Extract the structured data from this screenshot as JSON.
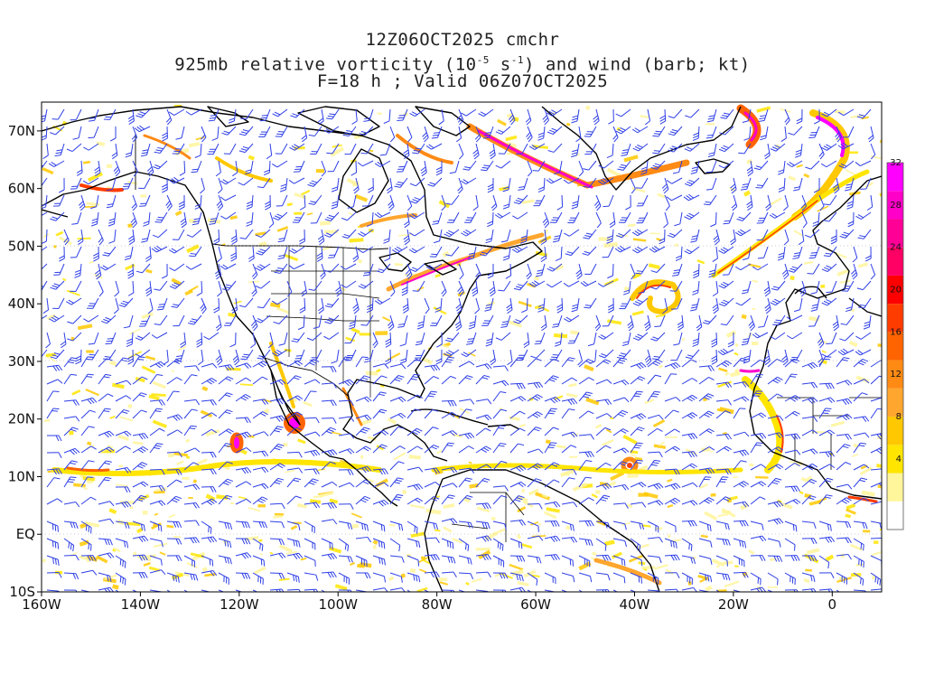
{
  "title": {
    "line1": "12Z06OCT2025 cmchr",
    "line2_parts": [
      "925mb relative vorticity (10",
      "-5",
      " s",
      "-1",
      ") and wind (barb; kt)"
    ],
    "line3": "F=18 h ; Valid 06Z07OCT2025"
  },
  "axes": {
    "lat_labels": [
      "70N",
      "60N",
      "50N",
      "40N",
      "30N",
      "20N",
      "10N",
      "EQ",
      "10S"
    ],
    "lat_values": [
      70,
      60,
      50,
      40,
      30,
      20,
      10,
      0,
      -10
    ],
    "lon_labels": [
      "160W",
      "140W",
      "120W",
      "100W",
      "80W",
      "60W",
      "40W",
      "20W",
      "0"
    ],
    "lon_values": [
      -160,
      -140,
      -120,
      -100,
      -80,
      -60,
      -40,
      -20,
      0
    ],
    "lon_range": [
      -160,
      10
    ],
    "lat_range": [
      -10,
      75
    ]
  },
  "colorbar": {
    "labels": [
      "4",
      "8",
      "12",
      "16",
      "20",
      "24",
      "28",
      "32"
    ],
    "colors": [
      "#ffffff",
      "#fff59a",
      "#ffe500",
      "#ffc800",
      "#ffa62e",
      "#ff8a14",
      "#ff6400",
      "#ff3c00",
      "#ff0000",
      "#ff0064",
      "#ff0096",
      "#ff00c8",
      "#ff00ff"
    ]
  },
  "colors": {
    "barb": "#2e3fe6",
    "coast": "#000000",
    "border": "#000000"
  }
}
